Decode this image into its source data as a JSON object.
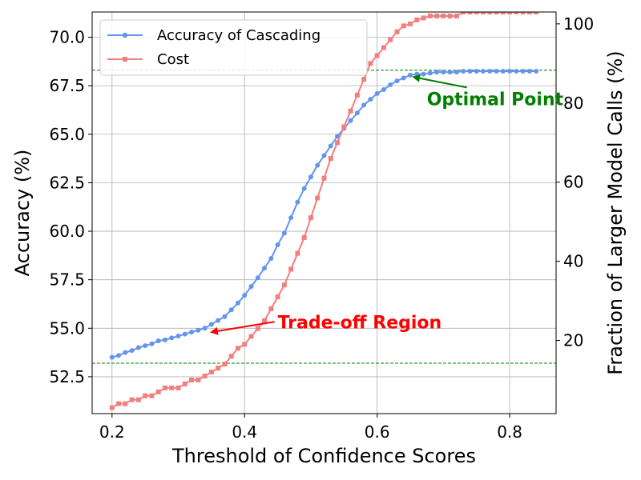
{
  "chart_data": {
    "type": "line",
    "xlabel": "Threshold of Confidence Scores",
    "ylabel": "Accuracy (%)",
    "ylabel_right": "Fraction of Larger Model Calls (%)",
    "xlim": [
      0.17,
      0.87
    ],
    "ylim": [
      50.6,
      71.3
    ],
    "ylim_right": [
      1.5,
      103
    ],
    "x_ticks": [
      0.2,
      0.4,
      0.6,
      0.8
    ],
    "x_tick_labels": [
      "0.2",
      "0.4",
      "0.6",
      "0.8"
    ],
    "y_ticks": [
      52.5,
      55.0,
      57.5,
      60.0,
      62.5,
      65.0,
      67.5,
      70.0
    ],
    "y_tick_labels": [
      "52.5",
      "55.0",
      "57.5",
      "60.0",
      "62.5",
      "65.0",
      "67.5",
      "70.0"
    ],
    "y_right_ticks": [
      20,
      40,
      60,
      80,
      100
    ],
    "y_right_tick_labels": [
      "20",
      "40",
      "60",
      "80",
      "100"
    ],
    "grid": true,
    "legend_position": "top-left",
    "hlines": [
      {
        "y": 68.3,
        "color": "#008000",
        "style": "dashed"
      },
      {
        "y": 53.2,
        "color": "#008000",
        "style": "dashed"
      }
    ],
    "series": [
      {
        "name": "Accuracy of Cascading",
        "axis": "left",
        "color": "#6495ED",
        "marker": "circle",
        "x": [
          0.2,
          0.21,
          0.22,
          0.23,
          0.24,
          0.25,
          0.26,
          0.27,
          0.28,
          0.29,
          0.3,
          0.31,
          0.32,
          0.33,
          0.34,
          0.35,
          0.36,
          0.37,
          0.38,
          0.39,
          0.4,
          0.41,
          0.42,
          0.43,
          0.44,
          0.45,
          0.46,
          0.47,
          0.48,
          0.49,
          0.5,
          0.51,
          0.52,
          0.53,
          0.54,
          0.55,
          0.56,
          0.57,
          0.58,
          0.59,
          0.6,
          0.61,
          0.62,
          0.63,
          0.64,
          0.65,
          0.66,
          0.67,
          0.68,
          0.69,
          0.7,
          0.71,
          0.72,
          0.73,
          0.74,
          0.75,
          0.76,
          0.77,
          0.78,
          0.79,
          0.8,
          0.81,
          0.82,
          0.83,
          0.84
        ],
        "y": [
          53.5,
          53.6,
          53.75,
          53.85,
          54.0,
          54.1,
          54.2,
          54.35,
          54.4,
          54.5,
          54.6,
          54.7,
          54.8,
          54.9,
          55.0,
          55.2,
          55.4,
          55.6,
          55.95,
          56.3,
          56.7,
          57.15,
          57.6,
          58.1,
          58.6,
          59.3,
          59.9,
          60.7,
          61.5,
          62.2,
          62.8,
          63.4,
          63.9,
          64.4,
          64.9,
          65.3,
          65.7,
          66.1,
          66.5,
          66.8,
          67.1,
          67.3,
          67.55,
          67.75,
          67.9,
          68.05,
          68.1,
          68.1,
          68.15,
          68.2,
          68.2,
          68.2,
          68.2,
          68.25,
          68.25,
          68.25,
          68.25,
          68.25,
          68.25,
          68.25,
          68.25,
          68.25,
          68.25,
          68.25,
          68.25
        ]
      },
      {
        "name": "Cost",
        "axis": "right",
        "color": "#F08080",
        "marker": "square",
        "x": [
          0.2,
          0.21,
          0.22,
          0.23,
          0.24,
          0.25,
          0.26,
          0.27,
          0.28,
          0.29,
          0.3,
          0.31,
          0.32,
          0.33,
          0.34,
          0.35,
          0.36,
          0.37,
          0.38,
          0.39,
          0.4,
          0.41,
          0.42,
          0.43,
          0.44,
          0.45,
          0.46,
          0.47,
          0.48,
          0.49,
          0.5,
          0.51,
          0.52,
          0.53,
          0.54,
          0.55,
          0.56,
          0.57,
          0.58,
          0.59,
          0.6,
          0.61,
          0.62,
          0.63,
          0.64,
          0.65,
          0.66,
          0.67,
          0.68,
          0.69,
          0.7,
          0.71,
          0.72,
          0.73,
          0.74,
          0.75,
          0.76,
          0.77,
          0.78,
          0.79,
          0.8,
          0.81,
          0.82,
          0.83,
          0.84
        ],
        "y": [
          3,
          4,
          4,
          5,
          5,
          6,
          6,
          7,
          8,
          8,
          8,
          9,
          10,
          10,
          11,
          12,
          13,
          14,
          16,
          18,
          19,
          21,
          23,
          25,
          28,
          31,
          34,
          38,
          42,
          46,
          51,
          56,
          61,
          66,
          70,
          74,
          78,
          82,
          86,
          90,
          92,
          94,
          96,
          98,
          99.5,
          100,
          101,
          101.5,
          102,
          102,
          102,
          102,
          102,
          103,
          103,
          103,
          103,
          103,
          103,
          103,
          103,
          103,
          103,
          103,
          103
        ]
      }
    ],
    "annotations": [
      {
        "text": "Optimal Point",
        "color": "#008000",
        "xy": [
          0.655,
          67.95
        ],
        "xytext": [
          0.675,
          66.5
        ]
      },
      {
        "text": "Trade-off Region",
        "color": "#FF0000",
        "xy": [
          0.35,
          54.8
        ],
        "xytext": [
          0.45,
          55.0
        ]
      }
    ]
  }
}
